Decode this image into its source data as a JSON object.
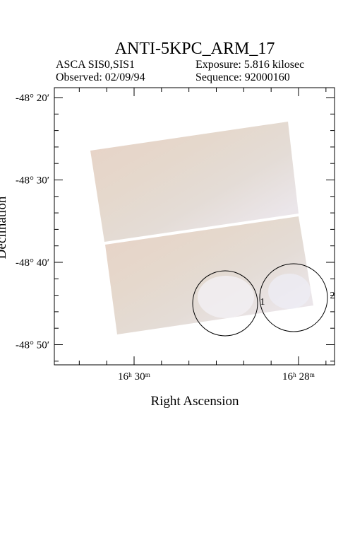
{
  "header": {
    "title": "ANTI-5KPC_ARM_17",
    "instrument": "ASCA SIS0,SIS1",
    "exposure": "Exposure: 5.816 kilosec",
    "observed": "Observed: 02/09/94",
    "sequence": "Sequence: 92000160"
  },
  "axes": {
    "x_label": "Right Ascension",
    "y_label": "Declination",
    "x_ticks": [
      "16ʰ 30ᵐ",
      "16ʰ 28ᵐ"
    ],
    "y_ticks": [
      "-48° 20′",
      "-48° 30′",
      "-48° 40′",
      "-48° 50′"
    ]
  },
  "sources": [
    "1",
    "2"
  ]
}
